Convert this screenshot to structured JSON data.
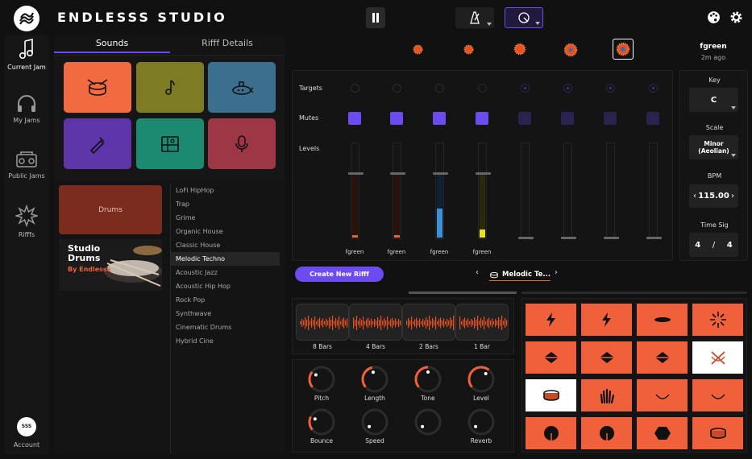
{
  "app": {
    "brand": "ENDLESSS STUDIO",
    "logo_text": "SSS"
  },
  "colors": {
    "accent": "#6c4bf0",
    "orange": "#f0603a",
    "tile_orange": "#f26a3f",
    "tile_olive": "#7d7c25",
    "tile_blue": "#3c6f8e",
    "tile_purple": "#5e35a8",
    "tile_teal": "#1b8a70",
    "tile_red": "#9d3745"
  },
  "sidebar": {
    "items": [
      {
        "label": "Current Jam",
        "icon": "music-note-icon"
      },
      {
        "label": "My Jams",
        "icon": "headphones-icon"
      },
      {
        "label": "Public Jams",
        "icon": "boombox-icon"
      },
      {
        "label": "Rifffs",
        "icon": "burst-icon"
      }
    ],
    "account": {
      "label": "Account",
      "avatar_text": "SSS"
    }
  },
  "sounds_panel": {
    "tabs": [
      {
        "label": "Sounds"
      },
      {
        "label": "Rifff Details"
      }
    ],
    "instruments": [
      {
        "name": "drum-icon"
      },
      {
        "name": "note-icon"
      },
      {
        "name": "submarine-icon"
      },
      {
        "name": "pencil-icon"
      },
      {
        "name": "sampler-icon"
      },
      {
        "name": "microphone-icon"
      }
    ],
    "drums_card": "Drums",
    "pack": {
      "title_line1": "Studio",
      "title_line2": "Drums",
      "by": "By Endlesss"
    },
    "genres": [
      "LoFi HipHop",
      "Trap",
      "Grime",
      "Organic House",
      "Classic House",
      "Melodic Techno",
      "Acoustic Jazz",
      "Acoustic Hip Hop",
      "Rock Pop",
      "Synthwave",
      "Cinematic Drums",
      "Hybrid Cine"
    ],
    "selected_genre": 5
  },
  "header": {
    "user": "fgreen",
    "time": "2m ago"
  },
  "mixer": {
    "labels": {
      "targets": "Targets",
      "mutes": "Mutes",
      "levels": "Levels"
    },
    "tracks": [
      {
        "name": "fgreen",
        "level": 0.03,
        "color": "#f0603a"
      },
      {
        "name": "fgreen",
        "level": 0.0,
        "color": "#f0603a"
      },
      {
        "name": "fgreen",
        "level": 0.45,
        "color": "#3b8fdb"
      },
      {
        "name": "fgreen",
        "level": 0.12,
        "color": "#e8e020"
      },
      {
        "name": "",
        "level": 0,
        "color": "#333"
      },
      {
        "name": "",
        "level": 0,
        "color": "#333"
      },
      {
        "name": "",
        "level": 0,
        "color": "#333"
      },
      {
        "name": "",
        "level": 0,
        "color": "#333"
      }
    ]
  },
  "settings": {
    "key_label": "Key",
    "key": "C",
    "scale_label": "Scale",
    "scale_line1": "Minor",
    "scale_line2": "(Aeolian)",
    "bpm_label": "BPM",
    "bpm": "115.00",
    "timesig_label": "Time Sig",
    "timesig_num": "4",
    "timesig_slash": "/",
    "timesig_den": "4"
  },
  "riff": {
    "create_label": "Create New Rifff",
    "current_sound": "Melodic Te..."
  },
  "loops": [
    "8 Bars",
    "4 Bars",
    "2 Bars",
    "1 Bar"
  ],
  "knobs": [
    {
      "label": "Pitch",
      "value": 0.3
    },
    {
      "label": "Length",
      "value": 0.45
    },
    {
      "label": "Tone",
      "value": 0.5
    },
    {
      "label": "Level",
      "value": 0.65
    },
    {
      "label": "Bounce",
      "value": 0.25
    },
    {
      "label": "Speed",
      "value": 0.0
    },
    {
      "label": "",
      "value": 0.0
    },
    {
      "label": "Reverb",
      "value": 0.0
    }
  ]
}
